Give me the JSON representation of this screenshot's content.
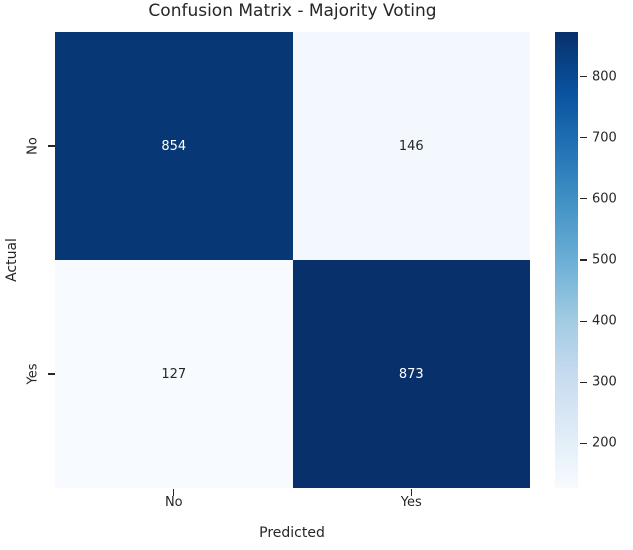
{
  "chart_data": {
    "type": "heatmap",
    "title": "Confusion Matrix - Majority Voting",
    "xlabel": "Predicted",
    "ylabel": "Actual",
    "x_categories": [
      "No",
      "Yes"
    ],
    "y_categories": [
      "No",
      "Yes"
    ],
    "matrix": [
      [
        854,
        146
      ],
      [
        127,
        873
      ]
    ],
    "colorbar": {
      "ticks": [
        800,
        700,
        600,
        500,
        400,
        300,
        200
      ],
      "range": [
        127,
        873
      ],
      "position": "right"
    },
    "colormap": {
      "name": "Blues",
      "stops": [
        "#f7fbff",
        "#deebf7",
        "#c6dbef",
        "#9ecae1",
        "#6baed6",
        "#4292c6",
        "#2171b5",
        "#08519c",
        "#08306b"
      ]
    },
    "colors": {
      "text": "#262626",
      "annot_on_dark": "#ffffff",
      "annot_on_light": "#262626",
      "background": "#ffffff"
    },
    "layout": {
      "grid": "off",
      "legend": "none"
    }
  }
}
